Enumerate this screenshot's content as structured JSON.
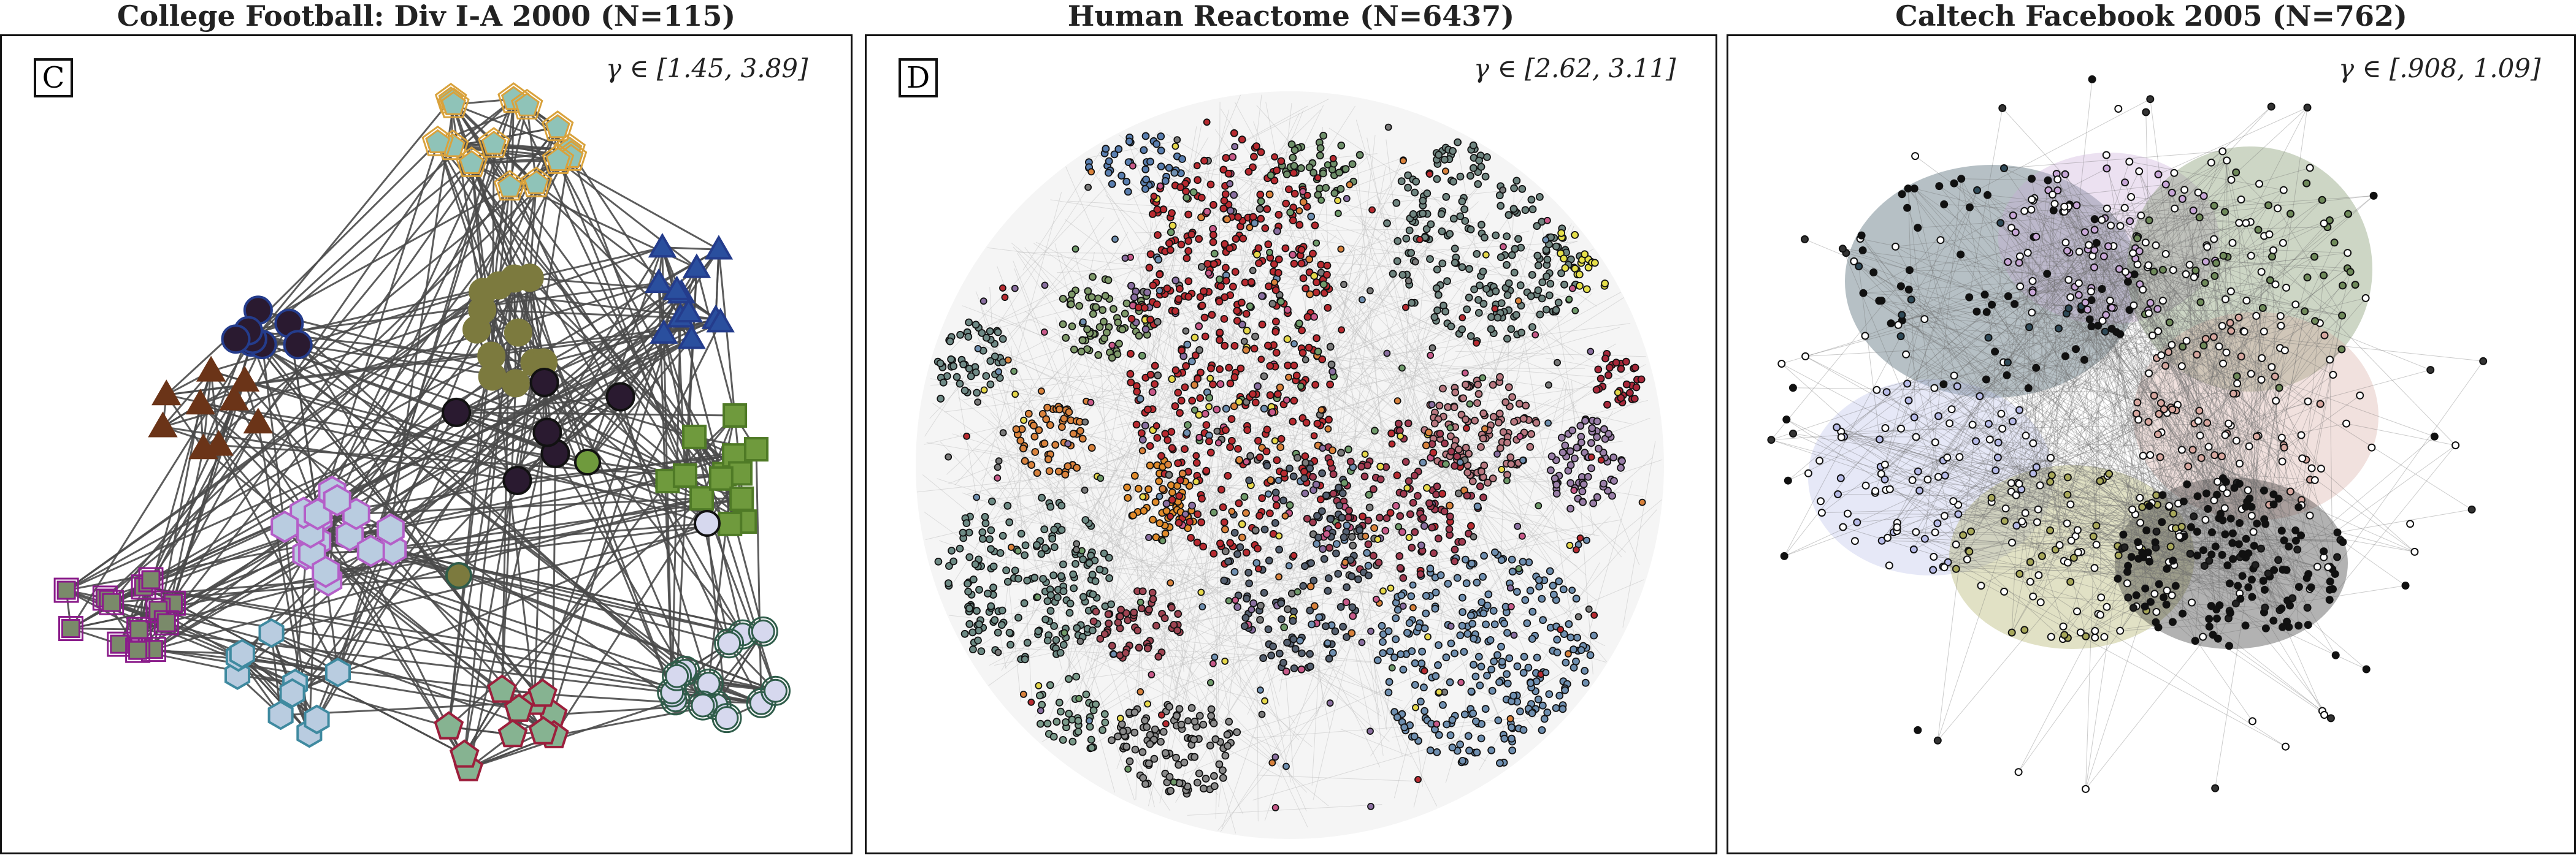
{
  "panels": [
    {
      "title": "College Football: Div I-A 2000 (N=115)",
      "letter": "C",
      "gamma": "γ ∈ [1.45, 3.89]"
    },
    {
      "title": "Human Reactome (N=6437)",
      "letter": "D",
      "gamma": "γ ∈ [2.62, 3.11]"
    },
    {
      "title": "Caltech Facebook 2005 (N=762)",
      "letter": "",
      "gamma": "γ ∈ [.908, 1.09]"
    }
  ],
  "colors": {
    "edge": "#4a4a4a",
    "gold": "#d9a23c",
    "gold_fill": "#8fc3b8",
    "navy": "#243c8c",
    "navy_fill": "#2a4f9e",
    "olive": "#7c7a3e",
    "plum": "#2a1a30",
    "brown": "#6b3418",
    "green": "#6f9a3d",
    "lilac_fill": "#b9cce0",
    "purple": "#b45fc8",
    "magenta": "#8a1c8a",
    "magenta_fill": "#7a8a6a",
    "teal": "#3f8aa0",
    "crimson": "#9c1f3c",
    "sage": "#86b391",
    "darkgreen": "#2f5c4a",
    "pale": "#d6d8ee"
  }
}
